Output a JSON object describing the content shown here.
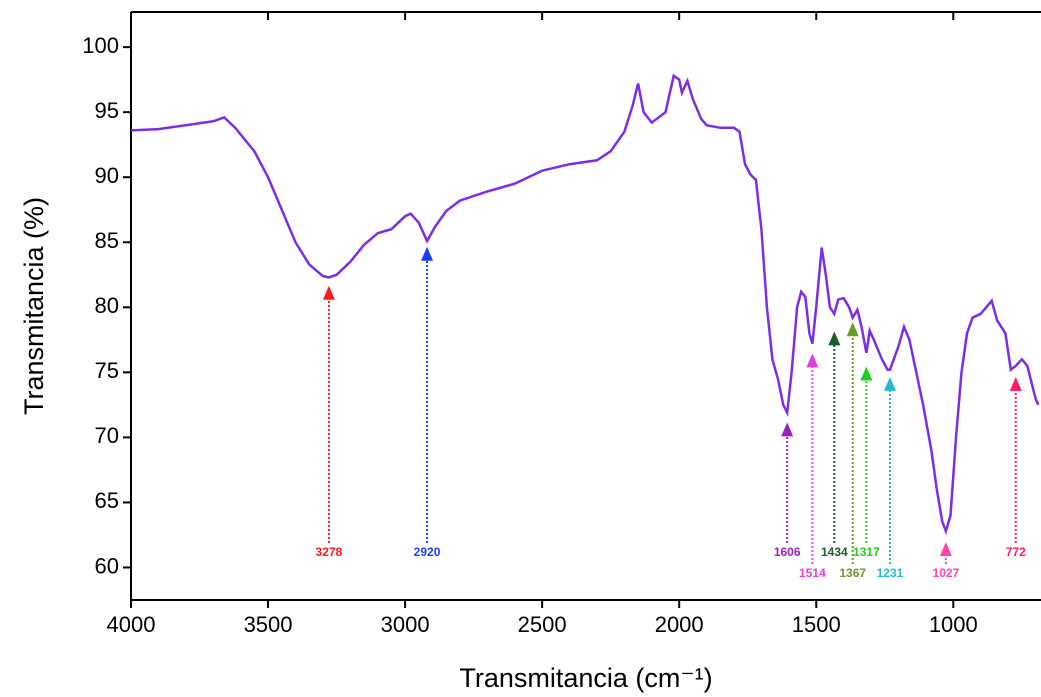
{
  "chart_data": {
    "type": "line",
    "x_label": "Transmitancia (cm⁻¹)",
    "y_label": "Transmitancia (%)",
    "color": "#7b2ee6",
    "x": [
      4000,
      3900,
      3800,
      3700,
      3660,
      3620,
      3550,
      3500,
      3450,
      3400,
      3350,
      3300,
      3278,
      3250,
      3200,
      3150,
      3100,
      3050,
      3000,
      2980,
      2950,
      2920,
      2890,
      2850,
      2800,
      2700,
      2600,
      2500,
      2400,
      2300,
      2250,
      2200,
      2170,
      2150,
      2130,
      2100,
      2050,
      2020,
      2000,
      1990,
      1970,
      1950,
      1920,
      1900,
      1850,
      1800,
      1780,
      1760,
      1740,
      1720,
      1700,
      1680,
      1660,
      1640,
      1620,
      1606,
      1590,
      1570,
      1555,
      1540,
      1525,
      1514,
      1500,
      1480,
      1465,
      1450,
      1434,
      1420,
      1400,
      1380,
      1367,
      1350,
      1335,
      1317,
      1305,
      1290,
      1260,
      1240,
      1231,
      1200,
      1180,
      1160,
      1140,
      1110,
      1080,
      1060,
      1040,
      1027,
      1010,
      990,
      970,
      950,
      930,
      900,
      880,
      860,
      840,
      810,
      790,
      772,
      750,
      730,
      700,
      690
    ],
    "values": [
      93.6,
      93.7,
      94.0,
      94.3,
      94.6,
      93.8,
      92.0,
      90.0,
      87.5,
      85.0,
      83.3,
      82.4,
      82.3,
      82.5,
      83.5,
      84.8,
      85.7,
      86.0,
      87.0,
      87.2,
      86.5,
      85.1,
      86.2,
      87.4,
      88.2,
      88.9,
      89.5,
      90.5,
      91.0,
      91.3,
      92.0,
      93.5,
      95.5,
      97.2,
      95.0,
      94.2,
      95.0,
      97.8,
      97.5,
      96.5,
      97.4,
      96.0,
      94.5,
      94.0,
      93.8,
      93.8,
      93.5,
      91.0,
      90.2,
      89.8,
      86.0,
      80.0,
      76.0,
      74.5,
      72.5,
      71.9,
      75.0,
      80.0,
      81.2,
      80.8,
      78.0,
      77.2,
      80.0,
      84.6,
      82.5,
      80.0,
      79.5,
      80.6,
      80.7,
      80.0,
      79.2,
      79.8,
      78.5,
      76.5,
      78.2,
      77.5,
      76.0,
      75.2,
      75.2,
      77.0,
      78.5,
      77.5,
      75.5,
      72.5,
      69.0,
      66.0,
      63.5,
      62.8,
      64.0,
      70.0,
      75.0,
      78.0,
      79.2,
      79.5,
      80.0,
      80.5,
      79.0,
      78.0,
      75.2,
      75.5,
      76.0,
      75.5,
      73.0,
      72.5
    ],
    "xlim": [
      4000,
      680
    ],
    "xticks": [
      4000,
      3500,
      3000,
      2500,
      2000,
      1500,
      1000
    ],
    "ylim": [
      57.5,
      102.7
    ],
    "yticks": [
      60,
      65,
      70,
      75,
      80,
      85,
      90,
      95,
      100
    ],
    "annotations": [
      {
        "x": 3278,
        "y": 81.5,
        "color": "#ff1a1a"
      },
      {
        "x": 2920,
        "y": 84.5,
        "color": "#1a3cff"
      },
      {
        "x": 1606,
        "y": 71.0,
        "color": "#9b1fbf"
      },
      {
        "x": 1514,
        "y": 76.3,
        "color": "#e040e0"
      },
      {
        "x": 1434,
        "y": 78.0,
        "color": "#1a5c2a"
      },
      {
        "x": 1367,
        "y": 78.7,
        "color": "#6b9a2a"
      },
      {
        "x": 1317,
        "y": 75.3,
        "color": "#22cc22"
      },
      {
        "x": 1231,
        "y": 74.5,
        "color": "#22bbcc"
      },
      {
        "x": 1027,
        "y": 61.8,
        "color": "#ff44aa"
      },
      {
        "x": 772,
        "y": 74.5,
        "color": "#ff1a6e"
      }
    ]
  }
}
